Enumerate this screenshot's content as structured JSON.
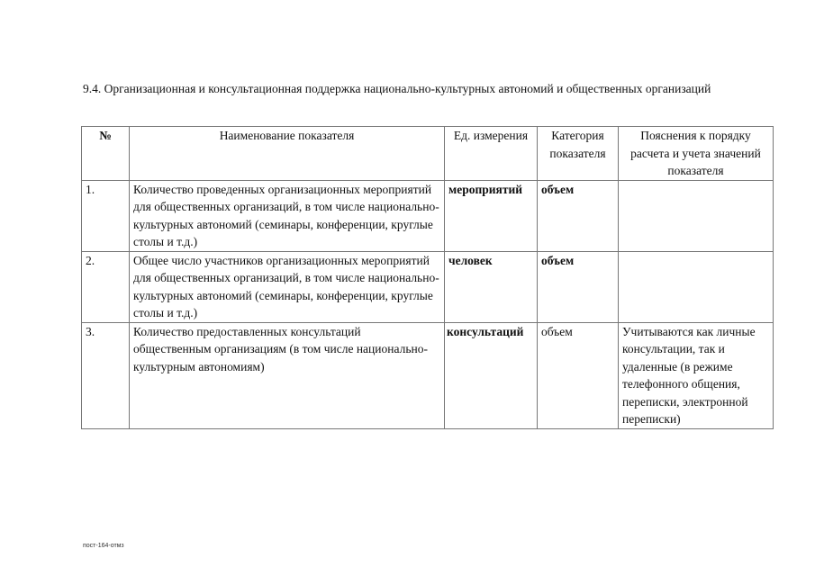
{
  "heading": {
    "number": "9.4.",
    "text": "Организационная и консультационная поддержка национально-культурных автономий и общественных организаций"
  },
  "table": {
    "headers": [
      "№",
      "Наименование показателя",
      "Ед. измерения",
      "Категория показателя",
      "Пояснения к порядку расчета и учета значений показателя"
    ],
    "rows": [
      {
        "num": "1.",
        "name": "Количество проведенных организационных мероприятий для общественных организаций, в том числе национально-культурных автономий (семинары, конференции, круглые столы и т.д.)",
        "unit": "мероприятий",
        "category": "объем",
        "note": ""
      },
      {
        "num": "2.",
        "name": "Общее число участников организационных мероприятий для общественных организаций, в том числе национально-культурных автономий (семинары, конференции, круглые столы и т.д.)",
        "unit": "человек",
        "category": "объем",
        "note": ""
      },
      {
        "num": "3.",
        "name": "Количество предоставленных консультаций общественным организациям (в том числе национально-культурным автономиям)",
        "unit": "консультаций",
        "category": "объем",
        "note": "Учитываются как личные консультации, так и удаленные (в режиме телефонного общения, переписки, электронной переписки)"
      }
    ]
  },
  "footer": "пост-164-отмз"
}
